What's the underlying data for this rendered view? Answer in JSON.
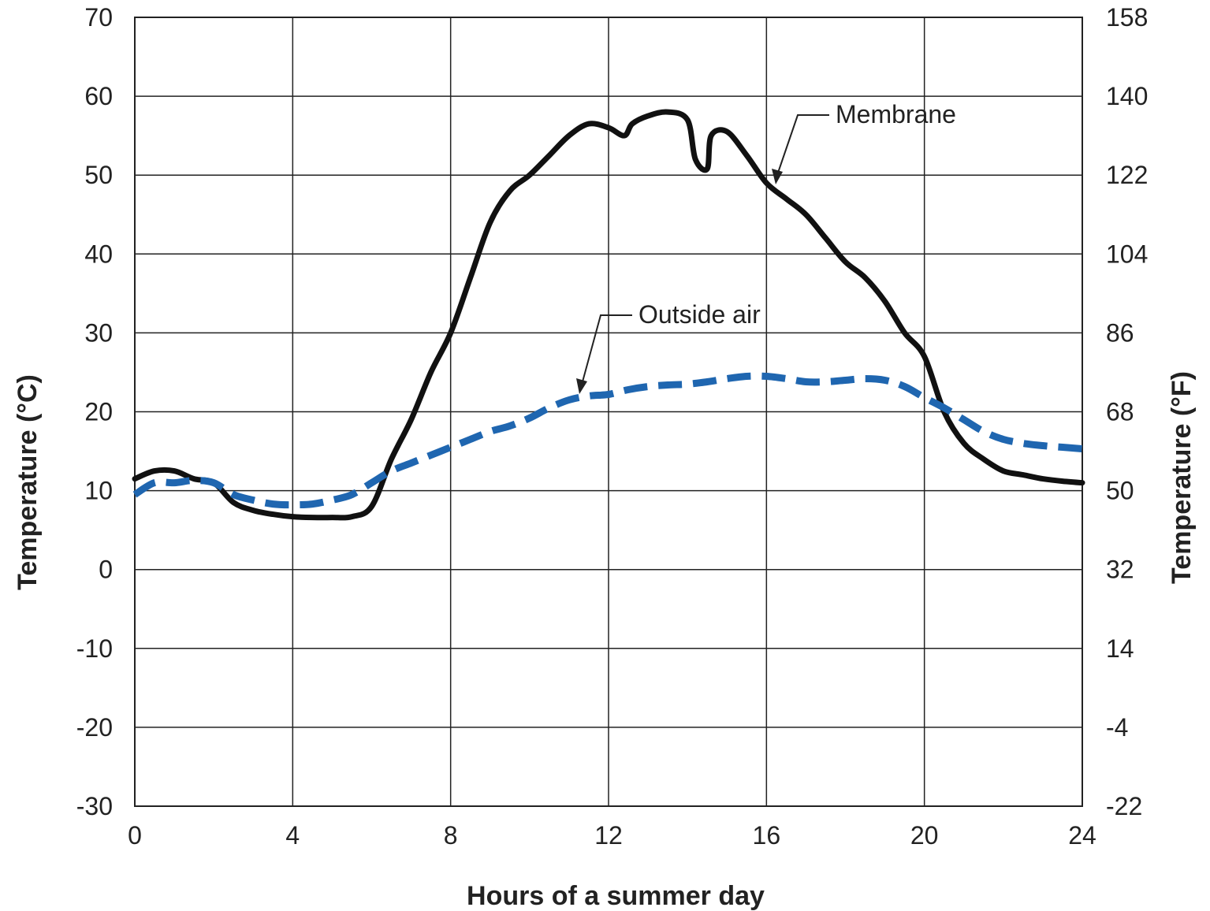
{
  "chart_data": {
    "type": "line",
    "title": "",
    "xlabel": "Hours of a summer day",
    "ylabel_left": "Temperature (°C)",
    "ylabel_right": "Temperature (°F)",
    "xlim": [
      0,
      24
    ],
    "ylim": [
      -30,
      70
    ],
    "xticks": [
      "0",
      "4",
      "8",
      "12",
      "16",
      "20",
      "24"
    ],
    "yticks_left": [
      "-30",
      "-20",
      "-10",
      "0",
      "10",
      "20",
      "30",
      "40",
      "50",
      "60",
      "70"
    ],
    "yticks_right": [
      "-22",
      "-4",
      "14",
      "32",
      "50",
      "68",
      "86",
      "104",
      "122",
      "140",
      "158"
    ],
    "grid": true,
    "series": [
      {
        "name": "Membrane",
        "color": "#111111",
        "style": "solid",
        "x": [
          0,
          0.5,
          1,
          1.5,
          2,
          2.5,
          3,
          3.5,
          4,
          4.5,
          5,
          5.5,
          6,
          6.5,
          7,
          7.5,
          8,
          8.5,
          9,
          9.5,
          10,
          10.5,
          11,
          11.5,
          12,
          12.4,
          12.6,
          13,
          13.5,
          14,
          14.2,
          14.5,
          14.6,
          15,
          15.5,
          16,
          16.5,
          17,
          17.5,
          18,
          18.5,
          19,
          19.5,
          20,
          20.5,
          21,
          21.5,
          22,
          22.5,
          23,
          23.5,
          24
        ],
        "y": [
          11.5,
          12.5,
          12.5,
          11.5,
          11,
          8.5,
          7.5,
          7,
          6.7,
          6.6,
          6.6,
          6.7,
          8,
          14,
          19,
          25,
          30,
          37,
          44,
          48,
          50,
          52.5,
          55,
          56.5,
          56,
          55,
          56.5,
          57.5,
          58,
          57,
          52,
          50.8,
          55,
          55.5,
          52.5,
          49,
          47,
          45,
          42,
          39,
          37,
          34,
          30,
          27,
          20,
          16,
          14,
          12.5,
          12,
          11.5,
          11.2,
          11
        ]
      },
      {
        "name": "Outside air",
        "color": "#1f66b0",
        "style": "dashed",
        "x": [
          0,
          0.5,
          1,
          1.5,
          2,
          2.5,
          3,
          3.5,
          4,
          4.5,
          5,
          5.5,
          6,
          6.5,
          7,
          7.5,
          8,
          8.5,
          9,
          9.5,
          10,
          10.5,
          11,
          11.5,
          12,
          12.5,
          13,
          13.5,
          14,
          14.5,
          15,
          15.5,
          16,
          16.5,
          17,
          17.5,
          18,
          18.5,
          19,
          19.5,
          20,
          20.5,
          21,
          21.5,
          22,
          22.5,
          23,
          23.5,
          24
        ],
        "y": [
          9.5,
          11,
          11,
          11.3,
          11,
          9.5,
          8.8,
          8.3,
          8.2,
          8.3,
          8.8,
          9.5,
          11,
          12.5,
          13.5,
          14.5,
          15.5,
          16.5,
          17.5,
          18.2,
          19.2,
          20.5,
          21.5,
          22,
          22.2,
          22.8,
          23.2,
          23.4,
          23.5,
          23.8,
          24.2,
          24.5,
          24.5,
          24.2,
          23.8,
          23.8,
          24,
          24.2,
          24,
          23.2,
          21.8,
          20.5,
          19,
          17.5,
          16.5,
          16,
          15.7,
          15.5,
          15.3
        ]
      }
    ],
    "annotations": [
      {
        "text": "Membrane",
        "points_to_x": 16.2,
        "points_to_y": 49
      },
      {
        "text": "Outside air",
        "points_to_x": 11.2,
        "points_to_y": 22
      }
    ]
  }
}
